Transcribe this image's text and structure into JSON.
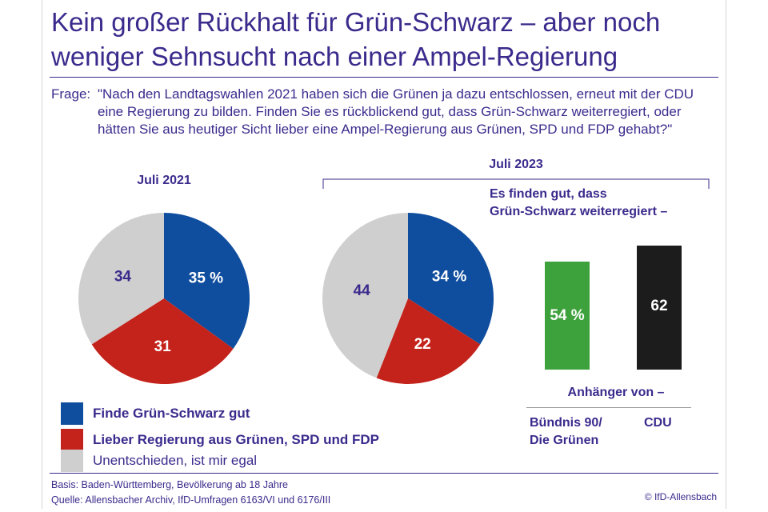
{
  "title_line1": "Kein großer Rückhalt für Grün-Schwarz – aber noch",
  "title_line2": "weniger Sehnsucht nach einer Ampel-Regierung",
  "question_label": "Frage:",
  "question_text": "\"Nach den Landtagswahlen 2021 haben sich die Grünen ja dazu entschlossen, erneut mit der CDU eine Regierung zu bilden. Finden Sie es rückblickend gut, dass Grün-Schwarz weiterregiert, oder hätten Sie aus heutiger Sicht lieber eine Ampel-Regierung aus Grünen, SPD und FDP gehabt?\"",
  "colors": {
    "text": "#3b2a8c",
    "blue": "#0f4d9e",
    "red": "#c4231b",
    "grey": "#cfcfcf",
    "green": "#3ea23c",
    "black": "#1c1c1c"
  },
  "chart_data": [
    {
      "type": "pie",
      "title": "Juli 2021",
      "slices": [
        {
          "label": "Finde Grün-Schwarz gut",
          "value": 35,
          "display": "35 %",
          "color": "#0f4d9e",
          "text_color": "#ffffff"
        },
        {
          "label": "Lieber Regierung aus Grünen, SPD und FDP",
          "value": 31,
          "display": "31",
          "color": "#c4231b",
          "text_color": "#ffffff"
        },
        {
          "label": "Unentschieden, ist mir egal",
          "value": 34,
          "display": "34",
          "color": "#cfcfcf",
          "text_color": "#3b2a8c"
        }
      ]
    },
    {
      "type": "pie",
      "title": "Juli 2023",
      "slices": [
        {
          "label": "Finde Grün-Schwarz gut",
          "value": 34,
          "display": "34 %",
          "color": "#0f4d9e",
          "text_color": "#ffffff"
        },
        {
          "label": "Lieber Regierung aus Grünen, SPD und FDP",
          "value": 22,
          "display": "22",
          "color": "#c4231b",
          "text_color": "#ffffff"
        },
        {
          "label": "Unentschieden, ist mir egal",
          "value": 44,
          "display": "44",
          "color": "#cfcfcf",
          "text_color": "#3b2a8c"
        }
      ]
    },
    {
      "type": "bar",
      "title": "Es finden gut, dass Grün-Schwarz weiterregiert –",
      "xlabel": "Anhänger von –",
      "categories": [
        "Bündnis 90/ Die Grünen",
        "CDU"
      ],
      "values": [
        54,
        62
      ],
      "display": [
        "54 %",
        "62"
      ],
      "colors": [
        "#3ea23c",
        "#1c1c1c"
      ]
    }
  ],
  "bar_title_line1": "Es finden gut, dass",
  "bar_title_line2": "Grün-Schwarz weiterregiert –",
  "party_green_line1": "Bündnis 90/",
  "party_green_line2": "Die Grünen",
  "party_cdu": "CDU",
  "legend": [
    {
      "label": "Finde Grün-Schwarz gut",
      "color": "#0f4d9e"
    },
    {
      "label": "Lieber Regierung aus Grünen, SPD und FDP",
      "color": "#c4231b"
    },
    {
      "label": "Unentschieden, ist mir egal",
      "color": "#cfcfcf"
    }
  ],
  "footer_basis": "Basis: Baden-Württemberg, Bevölkerung ab 18 Jahre",
  "footer_quelle": "Quelle: Allensbacher Archiv, IfD-Umfragen 6163/VI und 6176/III",
  "copyright": "© IfD-Allensbach"
}
